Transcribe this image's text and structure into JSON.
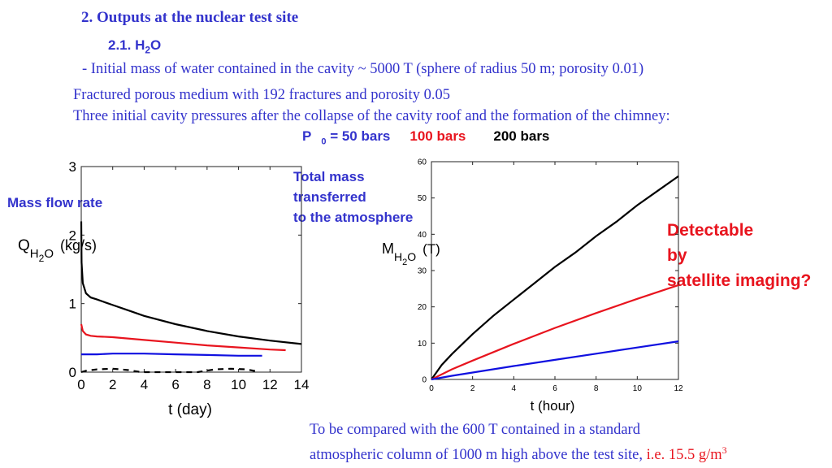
{
  "header": {
    "section_title": "2. Outputs at the nuclear test site",
    "subsection_prefix": "2.1. H",
    "subsection_sub": "2",
    "subsection_suffix": "O",
    "line1": "- Initial mass of water contained in the cavity ~ 5000 T (sphere of radius 50 m; porosity 0.01)",
    "line2": "Fractured porous medium with 192 fractures and porosity 0.05",
    "line3": "Three initial cavity pressures after the collapse of the cavity roof and the formation of the chimney:",
    "p0_prefix": "P",
    "p0_sub": "0",
    "p0_value": " = 50 bars",
    "p100": "100 bars",
    "p200": "200 bars"
  },
  "annotations": {
    "mass_flow_rate": "Mass flow rate",
    "total_mass_l1": "Total mass",
    "total_mass_l2": "transferred",
    "total_mass_l3": "to the atmosphere",
    "detect_l1": "Detectable",
    "detect_l2": "by",
    "detect_l3": "satellite imaging?"
  },
  "footer": {
    "line1": "To be compared with the 600 T contained in a standard",
    "line2_black": "atmospheric column of 1000 m high above the test site, ",
    "line2_red": "i.e. 15.5 g/m",
    "line2_sup": "3"
  },
  "colors": {
    "blue": "#1010e0",
    "red": "#e8141e",
    "black": "#000000",
    "text_blue": "#3333cc"
  },
  "chart_data": [
    {
      "type": "line",
      "xlabel": "t (day)",
      "ylabel": "Q_H2O (kg/s)",
      "xlim": [
        0,
        14
      ],
      "ylim": [
        0,
        3
      ],
      "xticks": [
        0,
        2,
        4,
        6,
        8,
        10,
        12,
        14
      ],
      "yticks": [
        0,
        1,
        2,
        3
      ],
      "series": [
        {
          "color": "#000000",
          "dash": false,
          "x": [
            0,
            0.02,
            0.1,
            0.3,
            0.6,
            1,
            2,
            3,
            4,
            6,
            8,
            10,
            12,
            14
          ],
          "y": [
            2.2,
            1.6,
            1.3,
            1.15,
            1.09,
            1.06,
            0.98,
            0.9,
            0.82,
            0.7,
            0.6,
            0.52,
            0.46,
            0.41
          ]
        },
        {
          "color": "#e8141e",
          "dash": false,
          "x": [
            0,
            0.1,
            0.3,
            0.6,
            1,
            2,
            4,
            6,
            8,
            10,
            12,
            13
          ],
          "y": [
            0.7,
            0.6,
            0.55,
            0.53,
            0.52,
            0.51,
            0.47,
            0.43,
            0.39,
            0.36,
            0.33,
            0.32
          ]
        },
        {
          "color": "#1010e0",
          "dash": false,
          "x": [
            0,
            0.5,
            1,
            2,
            3,
            4,
            6,
            8,
            10,
            11.5
          ],
          "y": [
            0.26,
            0.26,
            0.26,
            0.27,
            0.27,
            0.27,
            0.26,
            0.25,
            0.24,
            0.24
          ]
        },
        {
          "color": "#000000",
          "dash": true,
          "x": [
            0,
            0.3,
            1,
            2,
            3,
            3.8,
            7.4,
            8.5,
            9.5,
            10.5,
            11.2
          ],
          "y": [
            0.0,
            0.02,
            0.04,
            0.05,
            0.03,
            0.0,
            0.0,
            0.04,
            0.05,
            0.04,
            0.01
          ]
        }
      ]
    },
    {
      "type": "line",
      "xlabel": "t (hour)",
      "ylabel": "M_H2O (T)",
      "xlim": [
        0,
        12
      ],
      "ylim": [
        0,
        60
      ],
      "xticks": [
        0,
        2,
        4,
        6,
        8,
        10,
        12
      ],
      "yticks": [
        0,
        10,
        20,
        30,
        40,
        50,
        60
      ],
      "series": [
        {
          "color": "#000000",
          "dash": false,
          "x": [
            0,
            0.5,
            1,
            2,
            3,
            4,
            5,
            6,
            7,
            8,
            9,
            10,
            11,
            12
          ],
          "y": [
            0,
            4,
            7,
            12.5,
            17.5,
            22,
            26.5,
            31,
            35,
            39.5,
            43.5,
            48,
            52,
            56
          ]
        },
        {
          "color": "#e8141e",
          "dash": false,
          "x": [
            0,
            1,
            2,
            4,
            6,
            8,
            10,
            12
          ],
          "y": [
            0,
            2.8,
            5.2,
            9.8,
            14.2,
            18.3,
            22.2,
            26
          ]
        },
        {
          "color": "#1010e0",
          "dash": false,
          "x": [
            0,
            1,
            2,
            4,
            6,
            8,
            10,
            12
          ],
          "y": [
            0,
            1.0,
            1.9,
            3.7,
            5.4,
            7.1,
            8.8,
            10.5
          ]
        }
      ]
    }
  ]
}
